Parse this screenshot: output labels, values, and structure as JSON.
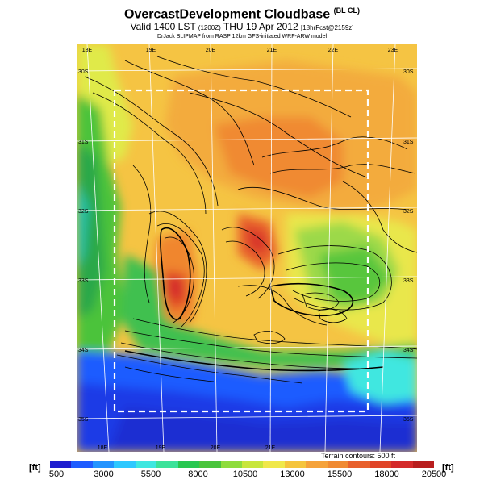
{
  "header": {
    "title": "OvercastDevelopment Cloudbase",
    "title_suffix": "(BL CL)",
    "valid_prefix": "Valid 1400 LST",
    "valid_code": "(1200Z)",
    "valid_date": "THU 19 Apr 2012",
    "valid_forecast": "[18hrFcst@2159z]",
    "credit": "DrJack BLIPMAP from RASP 12km GFS-initiated WRF-ARW model"
  },
  "map": {
    "lon_labels": [
      "18E",
      "19E",
      "20E",
      "21E",
      "22E",
      "23E"
    ],
    "lat_labels": [
      "30S",
      "31S",
      "32S",
      "33S",
      "34S",
      "35S"
    ],
    "terrain_note": "Terrain contours: 500 ft"
  },
  "legend": {
    "unit_left": "[ft]",
    "unit_right": "[ft]",
    "tick_labels": [
      "500",
      "3000",
      "5500",
      "8000",
      "10500",
      "13000",
      "15500",
      "18000",
      "20500"
    ],
    "colors": [
      "#1e1ecf",
      "#1e5cff",
      "#2394ff",
      "#2ec8ff",
      "#3fe7e0",
      "#3ce29a",
      "#28c750",
      "#4ac43c",
      "#8edc3c",
      "#c8e63c",
      "#f0e84a",
      "#f5c43c",
      "#f5a23a",
      "#f08a32",
      "#e8602c",
      "#e04428",
      "#d42a2a",
      "#b81e1e"
    ]
  }
}
